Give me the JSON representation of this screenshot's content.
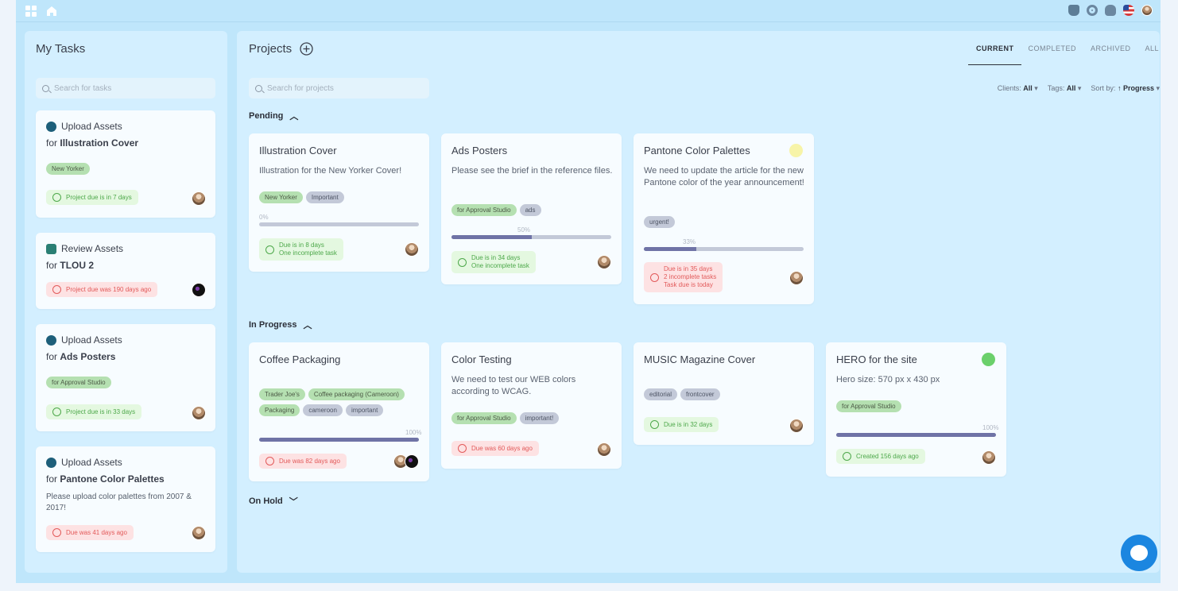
{
  "my_tasks": {
    "title": "My Tasks",
    "search_placeholder": "Search for tasks",
    "items": [
      {
        "action": "Upload Assets",
        "for_prefix": "for",
        "project": "Illustration Cover",
        "tags": [
          "New Yorker"
        ],
        "status": "Project due is in 7 days",
        "status_type": "green"
      },
      {
        "action": "Review Assets",
        "for_prefix": "for",
        "project": "TLOU 2",
        "tags": [],
        "status": "Project due was 190 days ago",
        "status_type": "red"
      },
      {
        "action": "Upload Assets",
        "for_prefix": "for",
        "project": "Ads Posters",
        "tags": [
          "for Approval Studio"
        ],
        "status": "Project due is in 33 days",
        "status_type": "green"
      },
      {
        "action": "Upload Assets",
        "for_prefix": "for",
        "project": "Pantone Color Palettes",
        "description": "Please upload color palettes from 2007 & 2017!",
        "tags": [],
        "status": "Due was 41 days ago",
        "status_type": "red"
      }
    ]
  },
  "projects": {
    "title": "Projects",
    "search_placeholder": "Search for projects",
    "tabs": [
      "CURRENT",
      "COMPLETED",
      "ARCHIVED",
      "ALL"
    ],
    "active_tab": "CURRENT",
    "filters": {
      "clients_label": "Clients:",
      "clients_value": "All",
      "tags_label": "Tags:",
      "tags_value": "All",
      "sort_label": "Sort by:",
      "sort_value": "↑ Progress"
    },
    "sections": {
      "pending": "Pending",
      "in_progress": "In Progress",
      "on_hold": "On Hold"
    },
    "pending": [
      {
        "title": "Illustration Cover",
        "description": "Illustration for the New Yorker Cover!",
        "tags": [
          [
            "New Yorker",
            "green"
          ],
          [
            "Important",
            "gray"
          ]
        ],
        "progress": "0%",
        "progress_value": 0,
        "status_lines": [
          "Due is in 8 days",
          "One incomplete task"
        ],
        "status_type": "green"
      },
      {
        "title": "Ads Posters",
        "description": "Please see the brief in the reference files.",
        "tags": [
          [
            "for Approval Studio",
            "green"
          ],
          [
            "ads",
            "gray"
          ]
        ],
        "progress": "50%",
        "progress_value": 50,
        "status_lines": [
          "Due is in 34 days",
          "One incomplete task"
        ],
        "status_type": "green"
      },
      {
        "title": "Pantone Color Palettes",
        "description": "We need to update the article for the new Pantone color of the year announcement!",
        "tags": [
          [
            "urgent!",
            "gray"
          ]
        ],
        "progress": "33%",
        "progress_value": 33,
        "status_lines": [
          "Due is in 35 days",
          "2 incomplete tasks",
          "Task due is today"
        ],
        "status_type": "red",
        "color_dot": "#f7f4a8"
      }
    ],
    "in_progress": [
      {
        "title": "Coffee Packaging",
        "tags": [
          [
            "Trader Joe's",
            "green"
          ],
          [
            "Coffee packaging (Cameroon)",
            "green"
          ],
          [
            "Packaging",
            "green"
          ],
          [
            "cameroon",
            "gray"
          ],
          [
            "important",
            "gray"
          ]
        ],
        "progress": "100%",
        "progress_value": 100,
        "status_lines": [
          "Due was 82 days ago"
        ],
        "status_type": "red"
      },
      {
        "title": "Color Testing",
        "description": "We need to test our WEB colors according to WCAG.",
        "tags": [
          [
            "for Approval Studio",
            "green"
          ],
          [
            "important!",
            "gray"
          ]
        ],
        "status_lines": [
          "Due was 60 days ago"
        ],
        "status_type": "red"
      },
      {
        "title": "MUSIC Magazine Cover",
        "tags": [
          [
            "editorial",
            "gray"
          ],
          [
            "frontcover",
            "gray"
          ]
        ],
        "status_lines": [
          "Due is in 32 days"
        ],
        "status_type": "green"
      },
      {
        "title": "HERO for the site",
        "description": "Hero size: 570 px x 430 px",
        "tags": [
          [
            "for Approval Studio",
            "green"
          ]
        ],
        "progress": "100%",
        "progress_value": 100,
        "status_lines": [
          "Created 156 days ago"
        ],
        "status_type": "green",
        "color_dot": "#6bd06b"
      }
    ]
  },
  "colors": {
    "accent": "#6f73a6",
    "frame": "#bfe6fb",
    "panel": "#d3efff",
    "chat": "#1b86e0"
  }
}
